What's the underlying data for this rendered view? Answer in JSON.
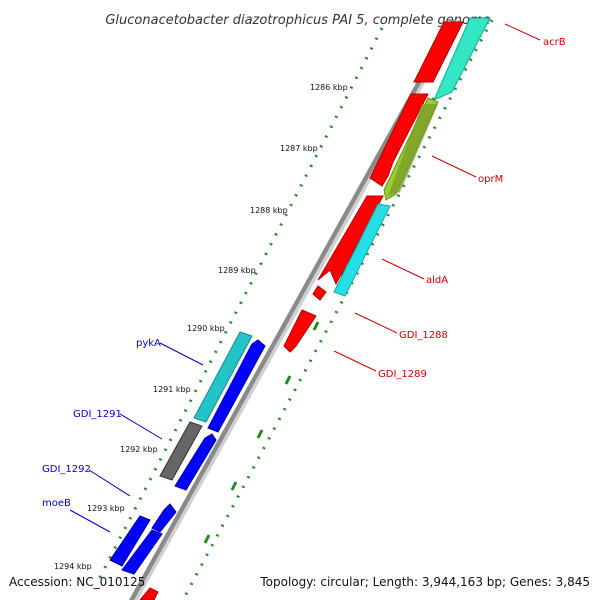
{
  "map": {
    "title": "Gluconacetobacter diazotrophicus PAI 5, complete genome",
    "accession": "Accession: NC_010125",
    "summary": "Topology: circular; Length: 3,944,163 bp; Genes: 3,845",
    "ticks": [
      "1286 kbp",
      "1287 kbp",
      "1288 kbp",
      "1289 kbp",
      "1290 kbp",
      "1291 kbp",
      "1292 kbp",
      "1293 kbp",
      "1294 kbp"
    ],
    "genes_right": [
      {
        "name": "acrB",
        "color": "#cc0000"
      },
      {
        "name": "oprM",
        "color": "#cc0000"
      },
      {
        "name": "aldA",
        "color": "#cc0000"
      },
      {
        "name": "GDI_1288",
        "color": "#cc0000"
      },
      {
        "name": "GDI_1289",
        "color": "#cc0000"
      }
    ],
    "genes_left": [
      {
        "name": "pykA",
        "color": "#0000cc"
      },
      {
        "name": "GDI_1291",
        "color": "#0000cc"
      },
      {
        "name": "GDI_1292",
        "color": "#0000cc"
      },
      {
        "name": "moeB",
        "color": "#0000cc"
      }
    ],
    "colors": {
      "forward_cds": "#ff0000",
      "reverse_cds": "#0000ff",
      "teal_feature": "#33e6c4",
      "cyan_feature": "#22e0e6",
      "olive_feature": "#9acd32",
      "gray_feature": "#666666",
      "backbone": "#888888",
      "tick_marks": "#228b22"
    }
  }
}
